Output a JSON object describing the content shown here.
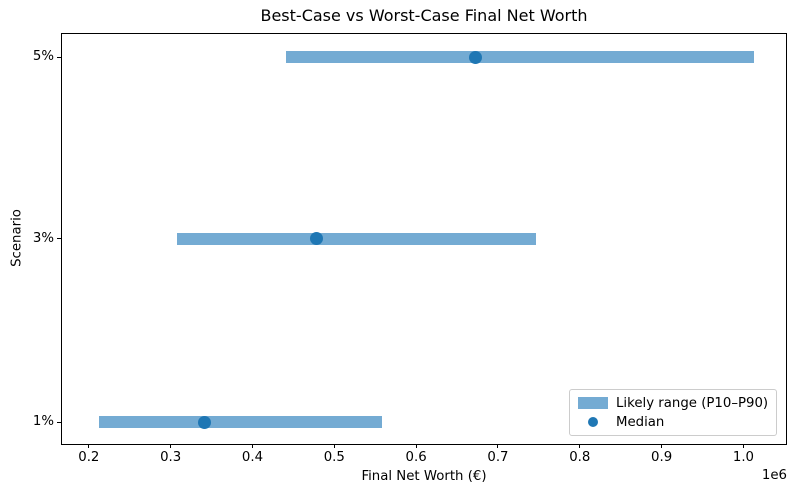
{
  "chart_data": {
    "type": "range_bar",
    "title": "Best-Case vs Worst-Case Final Net Worth",
    "xlabel": "Final Net Worth (€)",
    "ylabel": "Scenario",
    "x_offset_label": "1e6",
    "x_unit": 1000000,
    "xlim": [
      166000,
      1052000
    ],
    "x_ticks": [
      200000,
      300000,
      400000,
      500000,
      600000,
      700000,
      800000,
      900000,
      1000000
    ],
    "x_tick_labels": [
      "0.2",
      "0.3",
      "0.4",
      "0.5",
      "0.6",
      "0.7",
      "0.8",
      "0.9",
      "1.0"
    ],
    "categories": [
      "1%",
      "3%",
      "5%"
    ],
    "rows": [
      {
        "scenario": "1%",
        "p10": 213000,
        "median": 341000,
        "p90": 558000
      },
      {
        "scenario": "3%",
        "p10": 308000,
        "median": 478000,
        "p90": 747000
      },
      {
        "scenario": "5%",
        "p10": 441000,
        "median": 673000,
        "p90": 1013000
      }
    ],
    "legend": {
      "position": "lower right",
      "entries": [
        {
          "label": "Likely range (P10–P90)",
          "marker": "bar"
        },
        {
          "label": "Median",
          "marker": "dot"
        }
      ]
    },
    "colors": {
      "range_bar": "#74ABD3",
      "median_dot": "#1F77B4",
      "axis": "#000000",
      "legend_border": "#CCCCCC",
      "background": "#FFFFFF"
    },
    "grid": false
  }
}
